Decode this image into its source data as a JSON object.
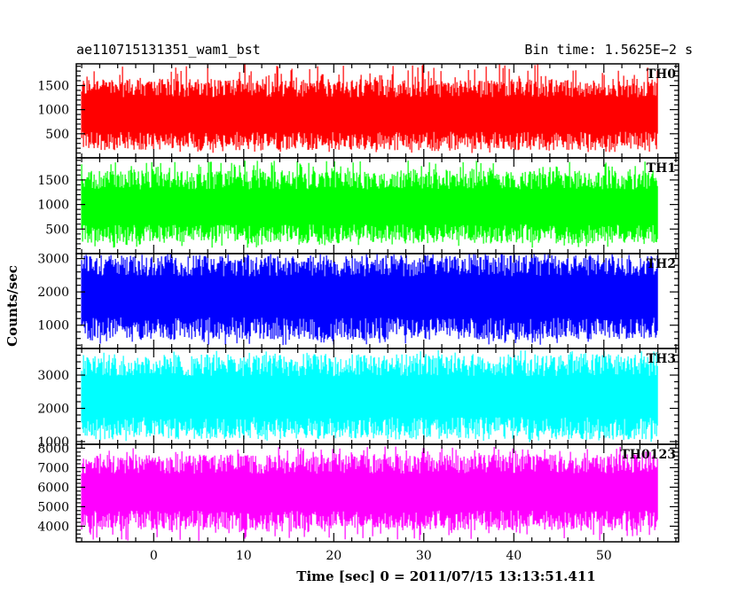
{
  "header": {
    "title": "ae110715131351_wam1_bst",
    "bin_time": "Bin time: 1.5625E−2 s"
  },
  "chart_data": {
    "type": "line",
    "xlabel": "Time [sec] 0 = 2011/07/15 13:13:51.411",
    "ylabel": "Counts/sec",
    "xlim": [
      -8.6,
      58.3
    ],
    "data_x_range": [
      -8,
      56
    ],
    "bin_time_s": 0.015625,
    "x_ticks": [
      0,
      10,
      20,
      30,
      40,
      50
    ],
    "grid": false,
    "panels": [
      {
        "name": "TH0",
        "color": "#ff0000",
        "ylim": [
          0,
          1950
        ],
        "y_ticks": [
          500,
          1000,
          1500
        ],
        "band_low": 100,
        "band_high": 1950,
        "typical": [
          350,
          1450
        ]
      },
      {
        "name": "TH1",
        "color": "#00ff00",
        "ylim": [
          0,
          1950
        ],
        "y_ticks": [
          500,
          1000,
          1500
        ],
        "band_low": 120,
        "band_high": 1900,
        "typical": [
          400,
          1500
        ]
      },
      {
        "name": "TH2",
        "color": "#0000ff",
        "ylim": [
          300,
          3150
        ],
        "y_ticks": [
          1000,
          2000,
          3000
        ],
        "band_low": 400,
        "band_high": 3150,
        "typical": [
          900,
          2800
        ]
      },
      {
        "name": "TH3",
        "color": "#00ffff",
        "ylim": [
          920,
          3800
        ],
        "y_ticks": [
          1000,
          2000,
          3000
        ],
        "band_low": 980,
        "band_high": 3750,
        "typical": [
          1400,
          3300
        ]
      },
      {
        "name": "TH0123",
        "color": "#ff00ff",
        "ylim": [
          3200,
          8200
        ],
        "y_ticks": [
          4000,
          5000,
          6000,
          7000,
          8000
        ],
        "band_low": 3250,
        "band_high": 8100,
        "typical": [
          4300,
          7200
        ]
      }
    ]
  }
}
